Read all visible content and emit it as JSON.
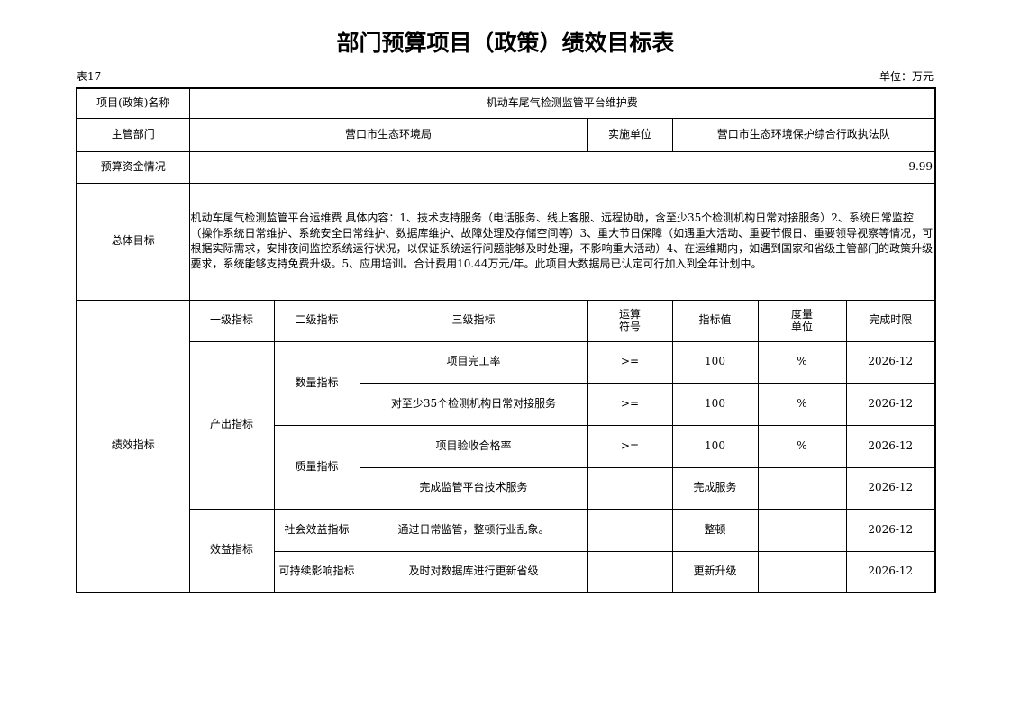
{
  "title": "部门预算项目（政策）绩效目标表",
  "table_no": "表17",
  "unit": "单位：万元",
  "project_name_label": "项目(政策)名称",
  "project_name": "机动车尾气检测监管平台维护费",
  "dept_label": "主管部门",
  "dept": "营口市生态环境局",
  "impl_label": "实施单位",
  "impl": "营口市生态环境保护综合行政执法队",
  "budget_label": "预算资金情况",
  "budget": "9.99",
  "goal_label": "总体目标",
  "goal": "机动车尾气检测监管平台运维费 具体内容：1、技术支持服务（电话服务、线上客服、远程协助，含至少35个检测机构日常对接服务）2、系统日常监控（操作系统日常维护、系统安全日常维护、数据库维护、故障处理及存储空间等）3、重大节日保障（如遇重大活动、重要节假日、重要领导视察等情况，可根据实际需求，安排夜间监控系统运行状况，以保证系统运行问题能够及时处理，不影响重大活动）4、在运维期内，如遇到国家和省级主管部门的政策升级要求，系统能够支持免费升级。5、应用培训。合计费用10.44万元/年。此项目大数据局已认定可行加入到全年计划中。",
  "perf_label": "绩效指标",
  "headers": [
    "一级指标",
    "二级指标",
    "三级指标",
    "运算\n符号",
    "指标值",
    "度量\n单位",
    "完成时限"
  ],
  "level1": [
    "产出指标",
    "效益指标"
  ],
  "level2": [
    "数量指标",
    "质量指标",
    "社会效益指标",
    "可持续影响指标"
  ],
  "rows": [
    {
      "l3": "项目完工率",
      "op": ">=",
      "val": "100",
      "unit": "%",
      "time": "2026-12"
    },
    {
      "l3": "对至少35个检测机构日常对接服务",
      "op": ">=",
      "val": "100",
      "unit": "%",
      "time": "2026-12"
    },
    {
      "l3": "项目验收合格率",
      "op": ">=",
      "val": "100",
      "unit": "%",
      "time": "2026-12"
    },
    {
      "l3": "完成监管平台技术服务",
      "op": "",
      "val": "完成服务",
      "unit": "",
      "time": "2026-12"
    },
    {
      "l3": "通过日常监管，整顿行业乱象。",
      "op": "",
      "val": "整顿",
      "unit": "",
      "time": "2026-12"
    },
    {
      "l3": "及时对数据库进行更新省级",
      "op": "",
      "val": "更新升级",
      "unit": "",
      "time": "2026-12"
    }
  ]
}
